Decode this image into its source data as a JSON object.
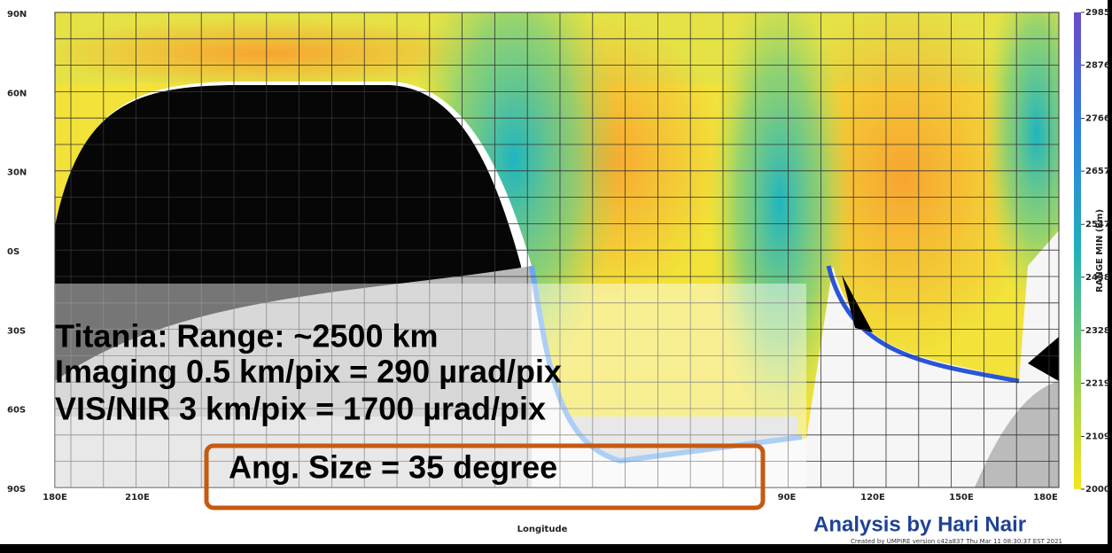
{
  "map": {
    "lat_labels": [
      "90N",
      "60N",
      "30N",
      "0S",
      "30S",
      "60S",
      "90S"
    ],
    "lon_labels": [
      "180E",
      "210E",
      "90E",
      "120E",
      "150E",
      "180E"
    ],
    "x_label": "Longitude",
    "credit": "Created by UMPIRE version c42a837 Thu Mar 11 08:30:37 EST 2021"
  },
  "colorbar": {
    "label": "RANGE MIN (km)",
    "ticks": [
      2985,
      2876,
      2766,
      2657,
      2547,
      2438,
      2328,
      2219,
      2109,
      2000
    ]
  },
  "overlay": {
    "lines": [
      "Titania:  Range: ~2500 km",
      "Imaging 0.5 km/pix = 290 µrad/pix",
      "VIS/NIR  3 km/pix = 1700 µrad/pix"
    ],
    "highlight": "Ang. Size = 35 degree"
  },
  "footer": "Analysis by Hari Nair"
}
